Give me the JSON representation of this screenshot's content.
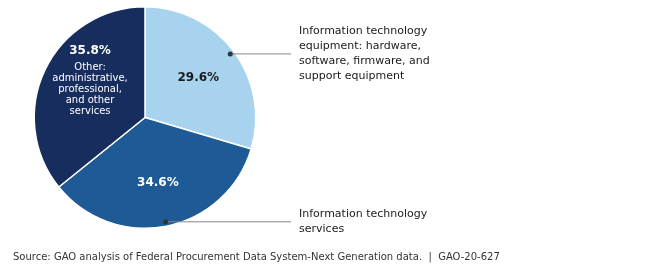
{
  "chart_data": {
    "type": "pie",
    "categories": [
      "Information technology\nequipment: hardware,\nsoftware, firmware, and\nsupport equipment",
      "Information technology\nservices",
      "Other:\nadministrative,\nprofessional,\nand other\nservices"
    ],
    "values": [
      29.6,
      34.6,
      35.8
    ],
    "value_labels": [
      "29.6%",
      "34.6%",
      "35.8%"
    ],
    "colors": [
      "#a8d3ef",
      "#1e5a96",
      "#162d5e"
    ],
    "data_labels": true,
    "annotations": [
      "Source: GAO analysis of Federal Procurement Data System-Next Generation data.  |  GAO-20-627"
    ]
  }
}
